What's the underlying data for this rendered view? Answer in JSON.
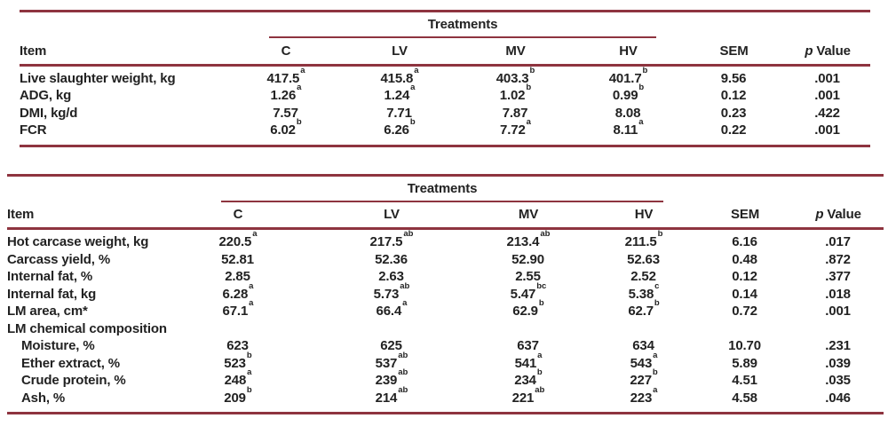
{
  "colors": {
    "rule": "#8e343f",
    "text": "#222222",
    "background": "#ffffff"
  },
  "tables": [
    {
      "spanner": "Treatments",
      "headers": {
        "item": "Item",
        "treatments": [
          "C",
          "LV",
          "MV",
          "HV"
        ],
        "sem": "SEM",
        "p_italic": "p",
        "p_rest": "Value"
      },
      "rows": [
        {
          "item": "Live slaughter weight, kg",
          "indent": 0,
          "cells": [
            {
              "v": "417.5",
              "sup": "a"
            },
            {
              "v": "415.8",
              "sup": "a"
            },
            {
              "v": "403.3",
              "sup": "b"
            },
            {
              "v": "401.7",
              "sup": "b"
            },
            {
              "v": "9.56",
              "sup": ""
            },
            {
              "v": ".001",
              "sup": ""
            }
          ]
        },
        {
          "item": "ADG, kg",
          "indent": 0,
          "cells": [
            {
              "v": "1.26",
              "sup": "a"
            },
            {
              "v": "1.24",
              "sup": "a"
            },
            {
              "v": "1.02",
              "sup": "b"
            },
            {
              "v": "0.99",
              "sup": "b"
            },
            {
              "v": "0.12",
              "sup": ""
            },
            {
              "v": ".001",
              "sup": ""
            }
          ]
        },
        {
          "item": "DMI, kg/d",
          "indent": 0,
          "cells": [
            {
              "v": "7.57",
              "sup": ""
            },
            {
              "v": "7.71",
              "sup": ""
            },
            {
              "v": "7.87",
              "sup": ""
            },
            {
              "v": "8.08",
              "sup": ""
            },
            {
              "v": "0.23",
              "sup": ""
            },
            {
              "v": ".422",
              "sup": ""
            }
          ]
        },
        {
          "item": "FCR",
          "indent": 0,
          "cells": [
            {
              "v": "6.02",
              "sup": "b"
            },
            {
              "v": "6.26",
              "sup": "b"
            },
            {
              "v": "7.72",
              "sup": "a"
            },
            {
              "v": "8.11",
              "sup": "a"
            },
            {
              "v": "0.22",
              "sup": ""
            },
            {
              "v": ".001",
              "sup": ""
            }
          ]
        }
      ]
    },
    {
      "spanner": "Treatments",
      "headers": {
        "item": "Item",
        "treatments": [
          "C",
          "LV",
          "MV",
          "HV"
        ],
        "sem": "SEM",
        "p_italic": "p",
        "p_rest": "Value"
      },
      "rows": [
        {
          "item": "Hot carcase weight, kg",
          "indent": 0,
          "cells": [
            {
              "v": "220.5",
              "sup": "a"
            },
            {
              "v": "217.5",
              "sup": "ab"
            },
            {
              "v": "213.4",
              "sup": "ab"
            },
            {
              "v": "211.5",
              "sup": "b"
            },
            {
              "v": "6.16",
              "sup": ""
            },
            {
              "v": ".017",
              "sup": ""
            }
          ]
        },
        {
          "item": "Carcass yield, %",
          "indent": 0,
          "cells": [
            {
              "v": "52.81",
              "sup": ""
            },
            {
              "v": "52.36",
              "sup": ""
            },
            {
              "v": "52.90",
              "sup": ""
            },
            {
              "v": "52.63",
              "sup": ""
            },
            {
              "v": "0.48",
              "sup": ""
            },
            {
              "v": ".872",
              "sup": ""
            }
          ]
        },
        {
          "item": "Internal fat, %",
          "indent": 0,
          "cells": [
            {
              "v": "2.85",
              "sup": ""
            },
            {
              "v": "2.63",
              "sup": ""
            },
            {
              "v": "2.55",
              "sup": ""
            },
            {
              "v": "2.52",
              "sup": ""
            },
            {
              "v": "0.12",
              "sup": ""
            },
            {
              "v": ".377",
              "sup": ""
            }
          ]
        },
        {
          "item": "Internal fat, kg",
          "indent": 0,
          "cells": [
            {
              "v": "6.28",
              "sup": "a"
            },
            {
              "v": "5.73",
              "sup": "ab"
            },
            {
              "v": "5.47",
              "sup": "bc"
            },
            {
              "v": "5.38",
              "sup": "c"
            },
            {
              "v": "0.14",
              "sup": ""
            },
            {
              "v": ".018",
              "sup": ""
            }
          ]
        },
        {
          "item": "LM area, cm*",
          "indent": 0,
          "cells": [
            {
              "v": "67.1",
              "sup": "a"
            },
            {
              "v": "66.4",
              "sup": "a"
            },
            {
              "v": "62.9",
              "sup": "b"
            },
            {
              "v": "62.7",
              "sup": "b"
            },
            {
              "v": "0.72",
              "sup": ""
            },
            {
              "v": ".001",
              "sup": ""
            }
          ]
        },
        {
          "item": "LM chemical composition",
          "indent": 0,
          "section": true,
          "cells": [
            {
              "v": "",
              "sup": ""
            },
            {
              "v": "",
              "sup": ""
            },
            {
              "v": "",
              "sup": ""
            },
            {
              "v": "",
              "sup": ""
            },
            {
              "v": "",
              "sup": ""
            },
            {
              "v": "",
              "sup": ""
            }
          ]
        },
        {
          "item": "Moisture, %",
          "indent": 1,
          "cells": [
            {
              "v": "623",
              "sup": ""
            },
            {
              "v": "625",
              "sup": ""
            },
            {
              "v": "637",
              "sup": ""
            },
            {
              "v": "634",
              "sup": ""
            },
            {
              "v": "10.70",
              "sup": ""
            },
            {
              "v": ".231",
              "sup": ""
            }
          ]
        },
        {
          "item": "Ether extract, %",
          "indent": 1,
          "cells": [
            {
              "v": "523",
              "sup": "b"
            },
            {
              "v": "537",
              "sup": "ab"
            },
            {
              "v": "541",
              "sup": "a"
            },
            {
              "v": "543",
              "sup": "a"
            },
            {
              "v": "5.89",
              "sup": ""
            },
            {
              "v": ".039",
              "sup": ""
            }
          ]
        },
        {
          "item": "Crude protein, %",
          "indent": 1,
          "cells": [
            {
              "v": "248",
              "sup": "a"
            },
            {
              "v": "239",
              "sup": "ab"
            },
            {
              "v": "234",
              "sup": "b"
            },
            {
              "v": "227",
              "sup": "b"
            },
            {
              "v": "4.51",
              "sup": ""
            },
            {
              "v": ".035",
              "sup": ""
            }
          ]
        },
        {
          "item": "Ash, %",
          "indent": 1,
          "cells": [
            {
              "v": "209",
              "sup": "b"
            },
            {
              "v": "214",
              "sup": "ab"
            },
            {
              "v": "221",
              "sup": "ab"
            },
            {
              "v": "223",
              "sup": "a"
            },
            {
              "v": "4.58",
              "sup": ""
            },
            {
              "v": ".046",
              "sup": ""
            }
          ]
        }
      ]
    }
  ]
}
